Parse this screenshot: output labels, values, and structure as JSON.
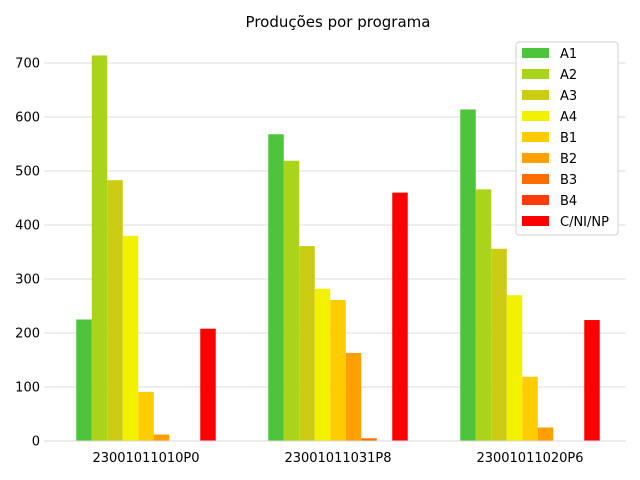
{
  "chart_data": {
    "type": "bar",
    "title": "Produções por programa",
    "xlabel": "",
    "ylabel": "",
    "categories": [
      "23001011010P0",
      "23001011031P8",
      "23001011020P6"
    ],
    "ylim": [
      0,
      750
    ],
    "yticks": [
      0,
      100,
      200,
      300,
      400,
      500,
      600,
      700
    ],
    "grid": true,
    "legend_position": "top-right",
    "series": [
      {
        "name": "A1",
        "color": "#4ec43c",
        "values": [
          225,
          568,
          614
        ]
      },
      {
        "name": "A2",
        "color": "#aad41c",
        "values": [
          714,
          519,
          466
        ]
      },
      {
        "name": "A3",
        "color": "#cccc14",
        "values": [
          483,
          361,
          356
        ]
      },
      {
        "name": "A4",
        "color": "#f2f200",
        "values": [
          380,
          282,
          270
        ]
      },
      {
        "name": "B1",
        "color": "#ffcc00",
        "values": [
          91,
          261,
          119
        ]
      },
      {
        "name": "B2",
        "color": "#ff9f00",
        "values": [
          12,
          163,
          25
        ]
      },
      {
        "name": "B3",
        "color": "#ff6d00",
        "values": [
          0,
          5,
          0
        ]
      },
      {
        "name": "B4",
        "color": "#ff3c0c",
        "values": [
          0,
          0,
          0
        ]
      },
      {
        "name": "C/NI/NP",
        "color": "#ff0000",
        "values": [
          208,
          460,
          224
        ]
      }
    ]
  }
}
